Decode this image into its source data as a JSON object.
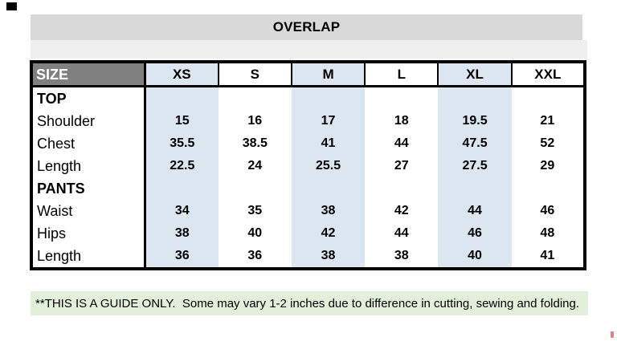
{
  "title": "OVERLAP",
  "size_chart": {
    "header": {
      "label": "SIZE",
      "sizes": [
        "XS",
        "S",
        "M",
        "L",
        "XL",
        "XXL"
      ]
    },
    "sections": [
      {
        "name": "TOP",
        "rows": [
          {
            "label": "Shoulder",
            "values": [
              "15",
              "16",
              "17",
              "18",
              "19.5",
              "21"
            ]
          },
          {
            "label": "Chest",
            "values": [
              "35.5",
              "38.5",
              "41",
              "44",
              "47.5",
              "52"
            ]
          },
          {
            "label": "Length",
            "values": [
              "22.5",
              "24",
              "25.5",
              "27",
              "27.5",
              "29"
            ]
          }
        ]
      },
      {
        "name": "PANTS",
        "rows": [
          {
            "label": "Waist",
            "values": [
              "34",
              "35",
              "38",
              "42",
              "44",
              "46"
            ]
          },
          {
            "label": "Hips",
            "values": [
              "38",
              "40",
              "42",
              "44",
              "46",
              "48"
            ]
          },
          {
            "label": "Length",
            "values": [
              "36",
              "36",
              "38",
              "38",
              "40",
              "41"
            ]
          }
        ]
      }
    ]
  },
  "footer_note": "**THIS IS A GUIDE ONLY.  Some may vary 1-2 inches due to difference in cutting, sewing and folding.",
  "colors": {
    "title_bar": "#d9d9d9",
    "sub_bar": "#efefef",
    "size_header_fill": "#808080",
    "highlight_column": "#dce6f1",
    "note_background": "#e2efda",
    "table_border": "#000000",
    "red_mark": "#d45858"
  }
}
